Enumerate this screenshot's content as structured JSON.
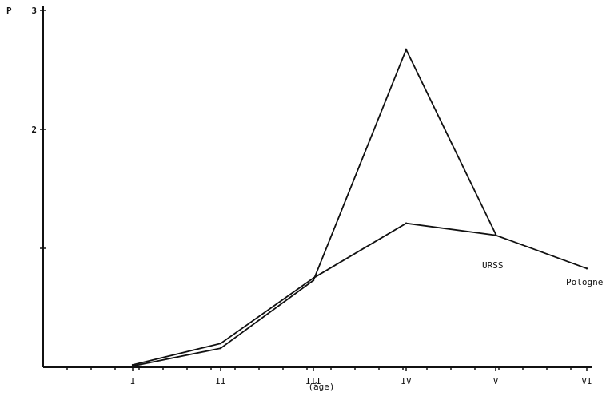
{
  "chart_data": {
    "type": "line",
    "ylabel": "P",
    "xlabel": "(âge)",
    "categories": [
      "I",
      "II",
      "III",
      "IV",
      "V",
      "VI"
    ],
    "ylim": [
      0,
      3
    ],
    "yticks": [
      {
        "value": 3,
        "label": "3"
      },
      {
        "value": 2,
        "label": "2"
      },
      {
        "value": 1,
        "label": ""
      }
    ],
    "series": [
      {
        "name": "URSS",
        "values": [
          0.01,
          0.16,
          0.73,
          2.67,
          1.12,
          null
        ]
      },
      {
        "name": "Pologne",
        "values": [
          0.02,
          0.2,
          0.75,
          1.21,
          1.11,
          0.83
        ]
      }
    ],
    "grid": false,
    "legend": "inline labels near series ends"
  }
}
